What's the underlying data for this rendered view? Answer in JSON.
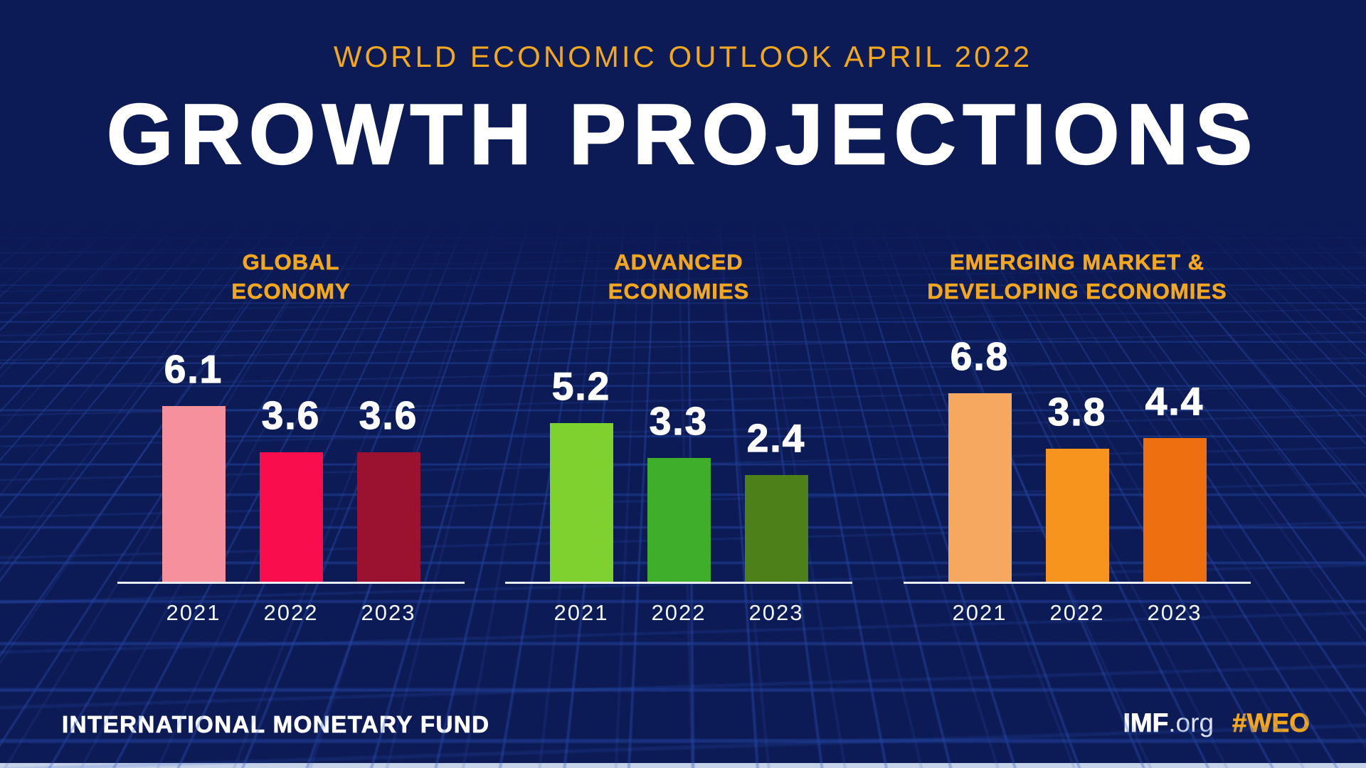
{
  "header": {
    "kicker": "WORLD ECONOMIC OUTLOOK APRIL 2022",
    "title": "GROWTH PROJECTIONS"
  },
  "chart_data": {
    "type": "bar",
    "title": "GROWTH PROJECTIONS",
    "subtitle": "WORLD ECONOMIC OUTLOOK APRIL 2022",
    "categories": [
      "2021",
      "2022",
      "2023"
    ],
    "gridlines": false,
    "value_labels_position": "above bars",
    "groups": [
      {
        "title_lines": [
          "GLOBAL",
          "ECONOMY"
        ],
        "bars": [
          {
            "year": "2021",
            "value": 6.1,
            "color": "#F4919D"
          },
          {
            "year": "2022",
            "value": 3.6,
            "color": "#FA0D4D"
          },
          {
            "year": "2023",
            "value": 3.6,
            "color": "#9B1130"
          }
        ]
      },
      {
        "title_lines": [
          "ADVANCED",
          "ECONOMIES"
        ],
        "bars": [
          {
            "year": "2021",
            "value": 5.2,
            "color": "#7FD12E"
          },
          {
            "year": "2022",
            "value": 3.3,
            "color": "#3EAE2B"
          },
          {
            "year": "2023",
            "value": 2.4,
            "color": "#4D8018"
          }
        ]
      },
      {
        "title_lines": [
          "EMERGING MARKET &",
          "DEVELOPING ECONOMIES"
        ],
        "bars": [
          {
            "year": "2021",
            "value": 6.8,
            "color": "#F6A95E"
          },
          {
            "year": "2022",
            "value": 3.8,
            "color": "#F7941D"
          },
          {
            "year": "2023",
            "value": 4.4,
            "color": "#ED6F0F"
          }
        ]
      }
    ]
  },
  "footer": {
    "organization": "INTERNATIONAL MONETARY FUND",
    "website_bold": "IMF",
    "website_suffix": ".org",
    "hashtag": "#WEO"
  },
  "colors": {
    "background": "#0C1A55",
    "accent_gold": "#F2A71E",
    "text_white": "#FFFFFF",
    "baseline": "#E8ECF5",
    "mesh_line": "#2B56C4",
    "bottom_strip": "#C6D2E8"
  }
}
